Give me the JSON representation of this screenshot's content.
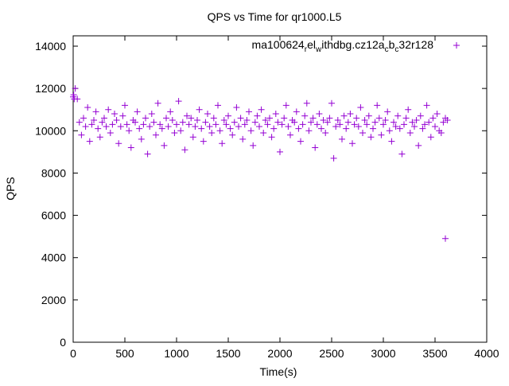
{
  "chart_data": {
    "type": "scatter",
    "title": "QPS vs Time for qr1000.L5",
    "xlabel": "Time(s)",
    "ylabel": "QPS",
    "xlim": [
      0,
      4000
    ],
    "ylim": [
      0,
      14000
    ],
    "xticks": [
      0,
      500,
      1000,
      1500,
      2000,
      2500,
      3000,
      3500,
      4000
    ],
    "yticks": [
      0,
      2000,
      4000,
      6000,
      8000,
      10000,
      12000,
      14000
    ],
    "xtick_labels": [
      "0",
      "500",
      "1000",
      "1500",
      "2000",
      "2500",
      "3000",
      "3500",
      "4000"
    ],
    "ytick_labels": [
      "0",
      "2000",
      "4000",
      "6000",
      "8000",
      "10000",
      "12000",
      "14000"
    ],
    "grid": false,
    "legend_position": "top-right",
    "series": [
      {
        "name": "ma100624",
        "legend_parts": [
          "ma100624",
          "r",
          "el",
          "w",
          "ithdbg.cz12a",
          "c",
          "b",
          "c",
          "32r128"
        ],
        "color": "#9400d3",
        "marker": "plus",
        "x_start": 0,
        "x_step": 20,
        "values": [
          11600,
          12000,
          11500,
          10400,
          9800,
          10600,
          10200,
          11100,
          9500,
          10300,
          10500,
          10900,
          10100,
          9700,
          10400,
          10600,
          10200,
          11000,
          9900,
          10300,
          10800,
          10500,
          9400,
          10200,
          10700,
          11200,
          10300,
          10000,
          9200,
          10500,
          10400,
          10900,
          10100,
          9600,
          10300,
          10600,
          8900,
          10200,
          10800,
          10400,
          9800,
          11300,
          10300,
          10100,
          9300,
          10600,
          10200,
          10900,
          10500,
          9900,
          10300,
          11400,
          10000,
          10400,
          9100,
          10700,
          10300,
          10600,
          9700,
          10200,
          10500,
          11000,
          10100,
          9500,
          10400,
          10800,
          10200,
          9900,
          10600,
          10300,
          11200,
          10000,
          9400,
          10500,
          10300,
          10700,
          10100,
          9800,
          10400,
          11100,
          10200,
          10600,
          9600,
          10300,
          10500,
          10900,
          10000,
          9300,
          10400,
          10700,
          10200,
          11000,
          9900,
          10500,
          10300,
          10600,
          9700,
          10100,
          10800,
          10400,
          9000,
          10300,
          10600,
          11200,
          10200,
          9800,
          10500,
          10400,
          10900,
          10100,
          9500,
          10300,
          10700,
          11300,
          10000,
          10400,
          10600,
          9200,
          10300,
          10800,
          10100,
          10500,
          9900,
          10400,
          10600,
          11300,
          8700,
          10200,
          10500,
          10300,
          9600,
          10700,
          10100,
          10400,
          10800,
          9400,
          10300,
          10600,
          10200,
          11100,
          9900,
          10500,
          10300,
          10700,
          9700,
          10100,
          10400,
          11200,
          10600,
          9800,
          10300,
          10500,
          10900,
          10000,
          9500,
          10400,
          10200,
          10700,
          10100,
          8900,
          10300,
          10600,
          11000,
          9900,
          10400,
          10200,
          10500,
          9300,
          10700,
          10100,
          10300,
          11200,
          10400,
          9700,
          10600,
          10200,
          10800,
          10000,
          9900,
          10400,
          10600,
          10500
        ],
        "extra_points": [
          [
            5,
            11700
          ],
          [
            10,
            11500
          ],
          [
            3600,
            4900
          ]
        ]
      }
    ]
  }
}
